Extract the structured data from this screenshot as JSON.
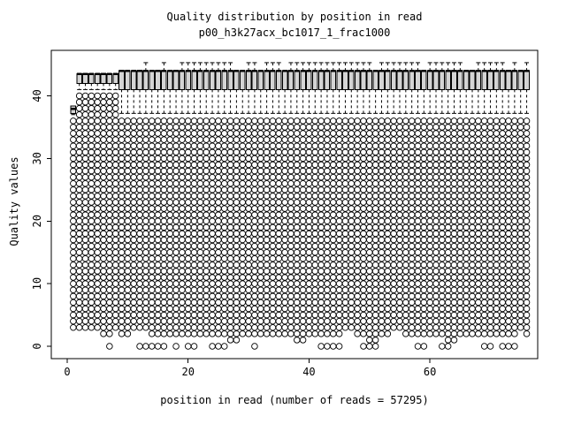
{
  "figure": {
    "title": "Quality distribution by position in read",
    "subtitle": "p00_h3k27acx_bc1017_1_frac1000",
    "n_reads_shown_in_xlabel": 57295
  },
  "chart_data": {
    "type": "boxplot",
    "title": "Quality distribution by position in read",
    "subtitle": "p00_h3k27acx_bc1017_1_frac1000",
    "xlabel": "position in read (number of reads = 57295)",
    "ylabel": "Quality values",
    "xticks": [
      0,
      20,
      40,
      60
    ],
    "yticks": [
      0,
      10,
      20,
      30,
      40
    ],
    "xlim": [
      -2,
      78
    ],
    "ylim": [
      -2,
      47
    ],
    "grid": false,
    "legend": "none",
    "n_positions": 76,
    "box_fill": "#d4d4d4",
    "groups": [
      {
        "from": 1,
        "to": 1,
        "q1": 37.2,
        "median": 37.9,
        "q3": 38.4,
        "whisker_low": 37.0,
        "whisker_high": null,
        "outlier_values": {
          "min": 3,
          "max": 36
        }
      },
      {
        "from": 2,
        "to": 8,
        "q1": 42.0,
        "median": 43.5,
        "q3": 43.5,
        "whisker_low": 41.0,
        "whisker_high": null,
        "outlier_values": {
          "min": 3,
          "max": 40
        }
      },
      {
        "from": 9,
        "to": 76,
        "q1": 41.0,
        "median": 44.0,
        "q3": 44.0,
        "whisker_low": 37.2,
        "whisker_high": 45.3,
        "outlier_values": {
          "min": 3,
          "max": 36
        }
      }
    ],
    "upper_whisker_positions": [
      13,
      16,
      19,
      20,
      21,
      22,
      23,
      24,
      25,
      26,
      27,
      30,
      31,
      33,
      34,
      35,
      37,
      38,
      39,
      40,
      41,
      42,
      43,
      44,
      45,
      46,
      47,
      48,
      49,
      50,
      52,
      53,
      54,
      55,
      56,
      57,
      58,
      60,
      61,
      62,
      63,
      64,
      65,
      68,
      69,
      70,
      71,
      72,
      74,
      76
    ],
    "low_outliers": {
      "value_2_missing_positions": [
        1,
        2,
        3,
        4,
        5,
        8,
        11,
        12,
        13,
        46,
        47,
        54,
        55,
        75
      ],
      "value_1_positions": [
        27,
        28,
        38,
        39,
        50,
        51,
        63,
        64
      ],
      "value_0_positions": [
        7,
        12,
        13,
        14,
        15,
        16,
        18,
        20,
        21,
        24,
        25,
        26,
        31,
        42,
        43,
        44,
        45,
        49,
        50,
        51,
        58,
        59,
        62,
        63,
        69,
        70,
        72,
        73,
        74
      ]
    }
  }
}
